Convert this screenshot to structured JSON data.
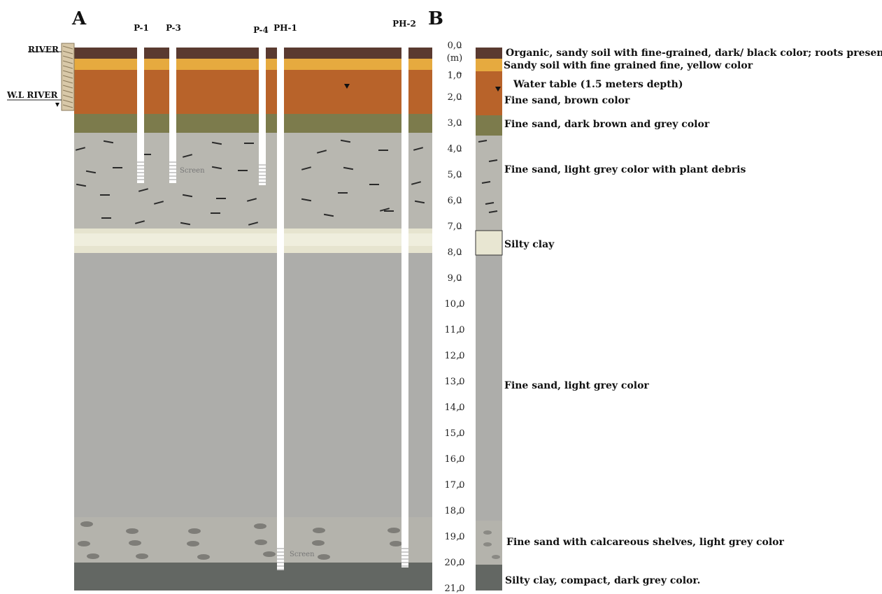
{
  "panels": {
    "a_label": "A",
    "b_label": "B"
  },
  "river": {
    "label": "RIVER",
    "wl_label": "W.L RIVER"
  },
  "wells": [
    {
      "label": "P-1"
    },
    {
      "label": "P-3",
      "screen_label": "Screen"
    },
    {
      "label": "P-4"
    },
    {
      "label": "PH-1",
      "screen_label": "Screen"
    },
    {
      "label": "PH-2"
    }
  ],
  "depth_axis": {
    "unit": "(m)",
    "ticks": [
      "0,0",
      "1,0",
      "2,0",
      "3,0",
      "4,0",
      "5,0",
      "6,0",
      "7,0",
      "8,0",
      "9,0",
      "10,0",
      "11,0",
      "12,0",
      "13,0",
      "14,0",
      "15,0",
      "16,0",
      "17,0",
      "18,0",
      "19,0",
      "20,0",
      "21,0"
    ]
  },
  "layers": [
    {
      "id": "organic",
      "description": "Organic, sandy soil with fine-grained, dark/ black color; roots presences",
      "color": "#5a3a30"
    },
    {
      "id": "sandy-yellow",
      "description": "Sandy soil with fine grained fine, yellow color",
      "color": "#e6aa3f"
    },
    {
      "id": "brown",
      "description": "Fine sand, brown color",
      "color": "#b8632a"
    },
    {
      "id": "dark-brown-grey",
      "description": "Fine sand, dark brown and grey color",
      "color": "#7c7b4c"
    },
    {
      "id": "plant-debris",
      "description": "Fine sand, light grey color with plant debris",
      "color": "#b8b7b0"
    },
    {
      "id": "silty-clay",
      "description": "Silty clay",
      "color": "#e6e4cf"
    },
    {
      "id": "light-grey",
      "description": "Fine sand, light grey color",
      "color": "#adadaa"
    },
    {
      "id": "calcareous",
      "description": "Fine sand with calcareous shelves, light grey color",
      "color": "#b4b3ac"
    },
    {
      "id": "compact-clay",
      "description": "Silty clay, compact, dark grey color.",
      "color": "#636763"
    }
  ],
  "water_table": {
    "label": "Water table (1.5 meters depth)"
  }
}
